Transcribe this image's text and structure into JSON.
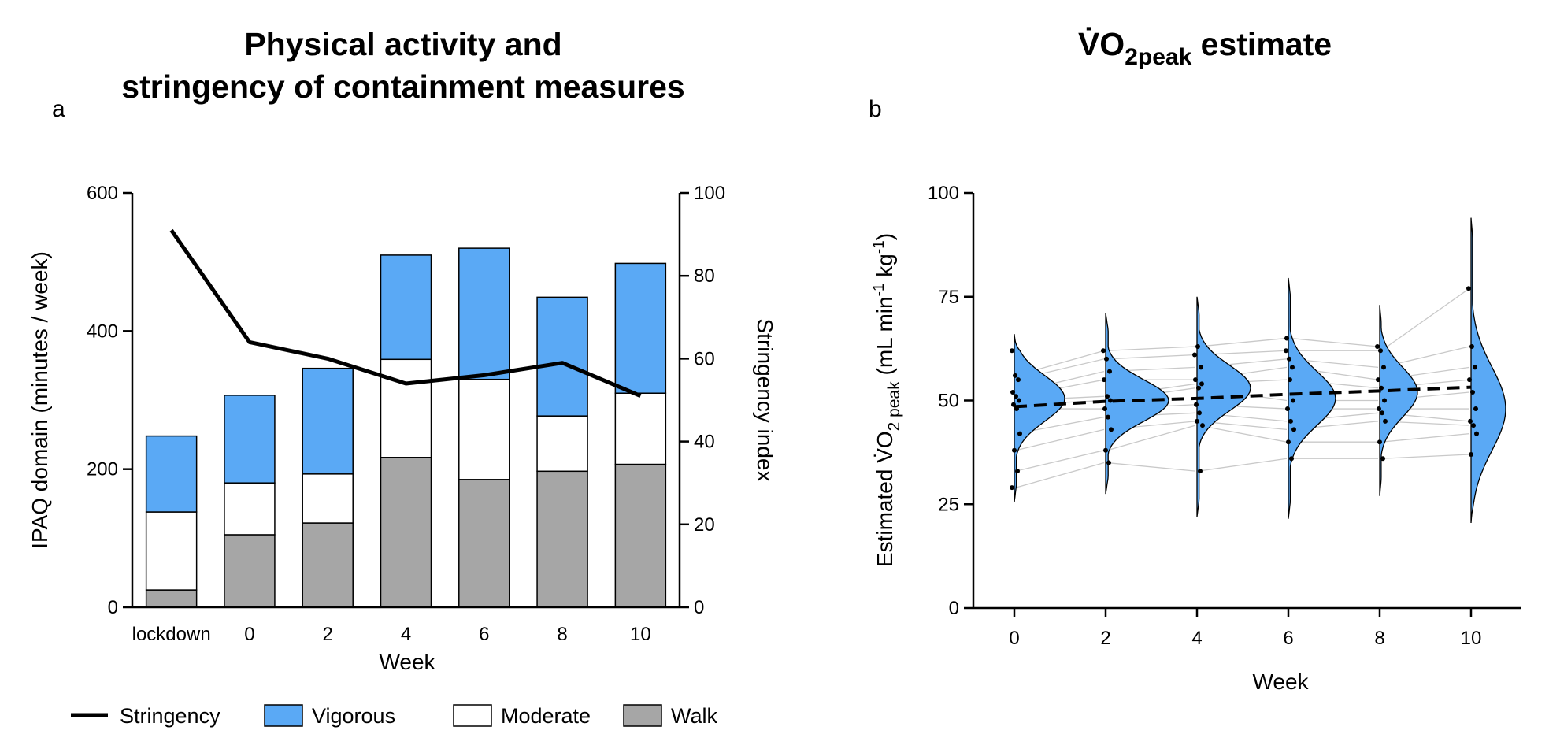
{
  "chart_data": [
    {
      "type": "bar",
      "panel": "a",
      "title_line1": "Physical activity and",
      "title_line2": "stringency of containment measures",
      "xlabel": "Week",
      "ylabel": "IPAQ domain (minutes / week)",
      "y2label": "Stringency index",
      "categories": [
        "lockdown",
        "0",
        "2",
        "4",
        "6",
        "8",
        "10"
      ],
      "stacked": true,
      "ylim": [
        0,
        600
      ],
      "yticks": [
        0,
        200,
        400,
        600
      ],
      "y2lim": [
        0,
        100
      ],
      "y2ticks": [
        0,
        20,
        40,
        60,
        80,
        100
      ],
      "series": [
        {
          "name": "Walk",
          "color": "#a6a6a6",
          "values": [
            25,
            105,
            122,
            217,
            185,
            197,
            207
          ]
        },
        {
          "name": "Moderate",
          "color": "#ffffff",
          "values": [
            113,
            75,
            71,
            142,
            145,
            80,
            103
          ]
        },
        {
          "name": "Vigorous",
          "color": "#5aa9f5",
          "values": [
            110,
            127,
            153,
            151,
            190,
            172,
            188
          ]
        }
      ],
      "line_series": {
        "name": "Stringency",
        "axis": "right",
        "values": [
          91,
          64,
          60,
          54,
          56,
          59,
          51
        ]
      },
      "legend": [
        "Stringency",
        "Vigorous",
        "Moderate",
        "Walk"
      ],
      "legend_position": "bottom"
    },
    {
      "type": "violin-scatter",
      "panel": "b",
      "title_main": "V̇O",
      "title_sub": "2peak",
      "title_rest": " estimate",
      "xlabel": "Week",
      "ylabel_main": "Estimated V̇O",
      "ylabel_sub": "2 peak",
      "ylabel_unit": " (mL min",
      "ylabel_exp1": "-1",
      "ylabel_mid": " kg",
      "ylabel_exp2": "-1",
      "ylabel_close": ")",
      "categories": [
        "0",
        "2",
        "4",
        "6",
        "8",
        "10"
      ],
      "ylim": [
        0,
        100
      ],
      "yticks": [
        0,
        25,
        50,
        75,
        100
      ],
      "mean_values": [
        48.5,
        49.8,
        50.5,
        51.5,
        52.3,
        53.2
      ],
      "violin_color": "#5aa9f5",
      "distributions": [
        {
          "min": 25.5,
          "max": 66,
          "mode": 50.5,
          "spread": 5.5,
          "width": 0.8
        },
        {
          "min": 27.5,
          "max": 71,
          "mode": 50,
          "spread": 5,
          "width": 1.0
        },
        {
          "min": 22,
          "max": 75,
          "mode": 53,
          "spread": 5.5,
          "width": 0.85
        },
        {
          "min": 21.5,
          "max": 79.5,
          "mode": 50.5,
          "spread": 6.5,
          "width": 0.75
        },
        {
          "min": 27,
          "max": 73,
          "mode": 52,
          "spread": 6,
          "width": 0.6
        },
        {
          "min": 20.5,
          "max": 94,
          "mode": 48,
          "spread": 10,
          "width": 0.55
        }
      ],
      "points": [
        [
          62,
          56,
          55,
          52,
          51,
          50,
          49,
          48,
          42,
          38,
          33,
          29
        ],
        [
          62,
          60,
          57,
          55,
          51,
          50,
          48,
          46,
          43,
          38,
          35
        ],
        [
          61,
          63,
          58,
          55,
          53,
          54,
          49,
          47,
          44,
          45,
          33
        ],
        [
          62,
          60,
          58,
          65,
          55,
          50,
          48,
          45,
          43,
          40,
          36
        ],
        [
          63,
          62,
          58,
          55,
          53,
          50,
          48,
          47,
          45,
          40,
          36
        ],
        [
          77,
          63,
          58,
          55,
          52,
          48,
          45,
          44,
          42,
          37
        ]
      ]
    }
  ]
}
